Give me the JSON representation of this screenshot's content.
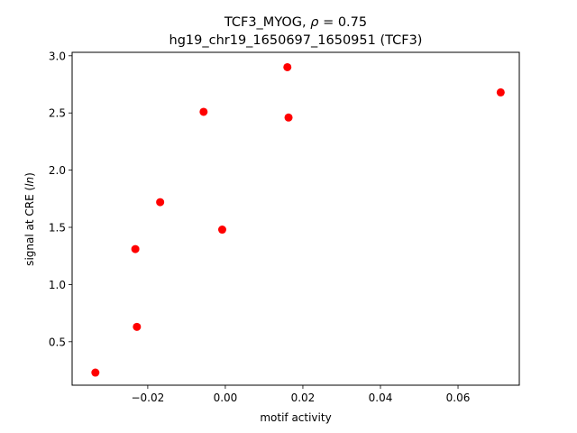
{
  "chart_data": {
    "type": "scatter",
    "title_line1_prefix": "TCF3_MYOG, ",
    "title_line1_rho_symbol": "ρ",
    "title_line1_rho_value": " = 0.75",
    "title_line2": "hg19_chr19_1650697_1650951 (TCF3)",
    "xlabel": "motif activity",
    "ylabel_prefix": "signal at CRE (",
    "ylabel_italic": "ln",
    "ylabel_suffix": ")",
    "xlim": [
      -0.0395,
      0.0758
    ],
    "ylim": [
      0.12,
      3.03
    ],
    "x_ticks": [
      -0.02,
      0.0,
      0.02,
      0.04,
      0.06
    ],
    "x_tick_labels": [
      "−0.02",
      "0.00",
      "0.02",
      "0.04",
      "0.06"
    ],
    "y_ticks": [
      0.5,
      1.0,
      1.5,
      2.0,
      2.5,
      3.0
    ],
    "y_tick_labels": [
      "0.5",
      "1.0",
      "1.5",
      "2.0",
      "2.5",
      "3.0"
    ],
    "marker_color": "#ff0000",
    "grid": false,
    "points": [
      {
        "x": -0.0335,
        "y": 0.23
      },
      {
        "x": -0.0228,
        "y": 0.63
      },
      {
        "x": -0.0232,
        "y": 1.31
      },
      {
        "x": -0.0168,
        "y": 1.72
      },
      {
        "x": -0.0056,
        "y": 2.51
      },
      {
        "x": -0.0008,
        "y": 1.48
      },
      {
        "x": 0.016,
        "y": 2.9
      },
      {
        "x": 0.0163,
        "y": 2.46
      },
      {
        "x": 0.071,
        "y": 2.68
      }
    ]
  }
}
